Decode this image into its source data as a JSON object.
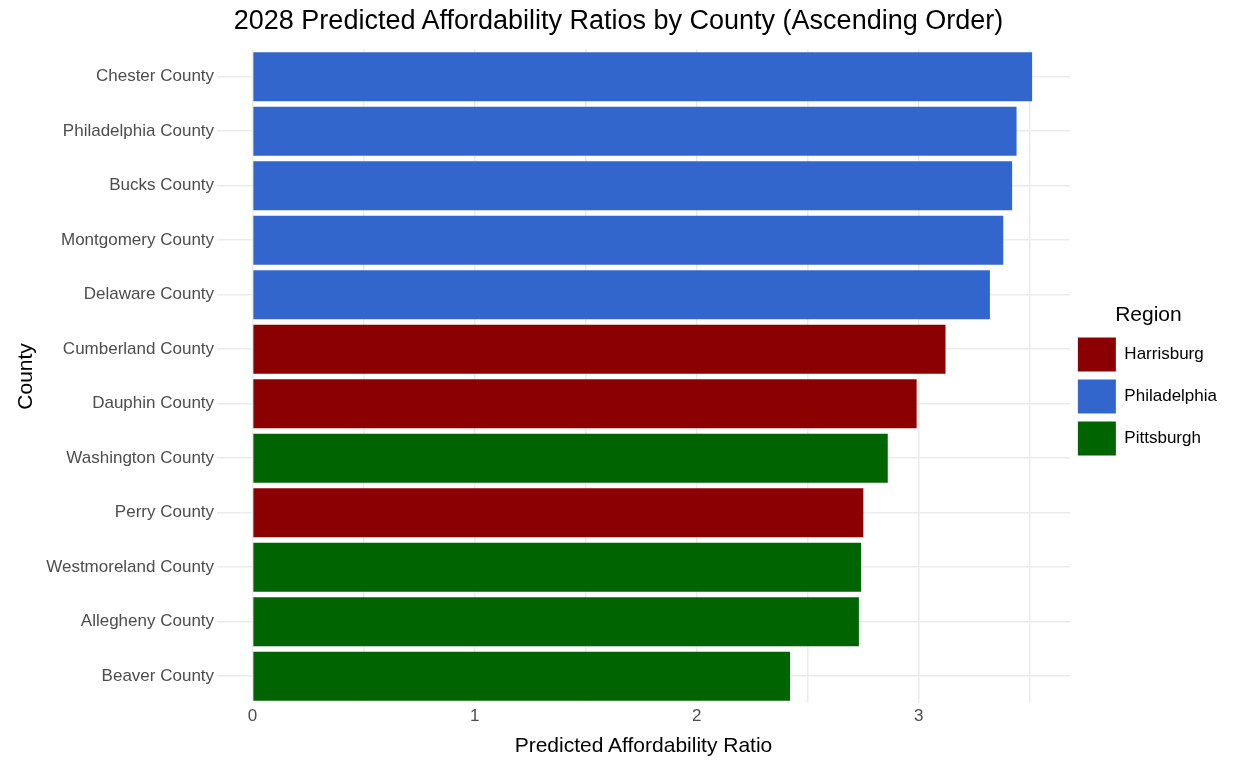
{
  "chart_data": {
    "type": "bar",
    "orientation": "horizontal",
    "title": "2028 Predicted Affordability Ratios by County (Ascending Order)",
    "xlabel": "Predicted Affordability Ratio",
    "ylabel": "County",
    "legend_title": "Region",
    "legend": "right",
    "grid": true,
    "categories": [
      "Chester County",
      "Philadelphia County",
      "Bucks County",
      "Montgomery County",
      "Delaware County",
      "Cumberland County",
      "Dauphin County",
      "Washington County",
      "Perry County",
      "Westmoreland County",
      "Allegheny County",
      "Beaver County"
    ],
    "xlim": [
      -0.16,
      3.68
    ],
    "xticks": [
      0,
      {
        "value": 0.5,
        "label": null
      },
      1,
      {
        "value": 1.5,
        "label": null
      },
      2,
      {
        "value": 2.5,
        "label": null
      },
      3,
      {
        "value": 3.5,
        "label": null
      }
    ],
    "series": [
      {
        "name": "Harrisburg",
        "color": "#8b0000",
        "values": [
          null,
          null,
          null,
          null,
          null,
          3.12,
          2.99,
          null,
          2.75,
          null,
          null,
          null
        ]
      },
      {
        "name": "Philadelphia",
        "color": "#3366cc",
        "values": [
          3.51,
          3.44,
          3.42,
          3.38,
          3.32,
          null,
          null,
          null,
          null,
          null,
          null,
          null
        ]
      },
      {
        "name": "Pittsburgh",
        "color": "#006400",
        "values": [
          null,
          null,
          null,
          null,
          null,
          null,
          null,
          2.86,
          null,
          2.74,
          2.73,
          2.42
        ]
      }
    ]
  }
}
